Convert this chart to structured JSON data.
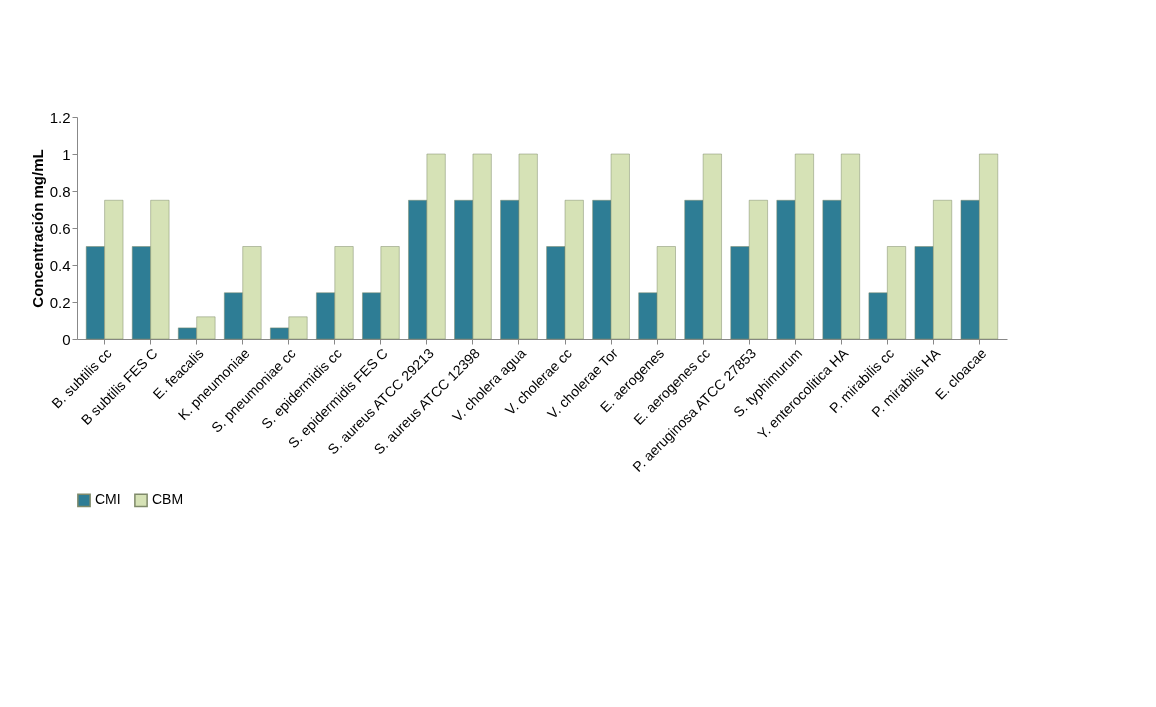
{
  "chart_data": {
    "type": "bar",
    "ylabel": "Concentración mg/mL",
    "categories": [
      "B. subtilis cc",
      "B subtilis FES C",
      "E. feacalis",
      "K. pneumoniae",
      "S. pneumoniae cc",
      "S. epidermidis cc",
      "S. epidermidis FES C",
      "S. aureus  ATCC 29213",
      "S. aureus ATCC 12398",
      "V. cholera agua",
      "V. cholerae cc",
      "V. cholerae Tor",
      "E. aerogenes",
      "E. aerogenes cc",
      "P. aeruginosa ATCC 27853",
      "S. typhimurum",
      "Y. enterocolitica HA",
      "P. mirabilis cc",
      "P. mirabilis HA",
      "E. cloacae"
    ],
    "series": [
      {
        "name": "CMI",
        "color": "#2e7d95",
        "values": [
          0.5,
          0.5,
          0.06,
          0.25,
          0.06,
          0.25,
          0.25,
          0.75,
          0.75,
          0.75,
          0.5,
          0.75,
          0.25,
          0.75,
          0.5,
          0.75,
          0.75,
          0.25,
          0.5,
          0.75
        ]
      },
      {
        "name": "CBM",
        "color": "#d6e2b6",
        "values": [
          0.75,
          0.75,
          0.12,
          0.5,
          0.12,
          0.5,
          0.5,
          1,
          1,
          1,
          0.75,
          1,
          0.5,
          1,
          0.75,
          1,
          1,
          0.5,
          0.75,
          1
        ]
      }
    ],
    "ylim": [
      0,
      1.2
    ],
    "yticks": [
      0,
      0.2,
      0.4,
      0.6,
      0.8,
      1,
      1.2
    ],
    "grid": false,
    "legend": "bottom"
  }
}
